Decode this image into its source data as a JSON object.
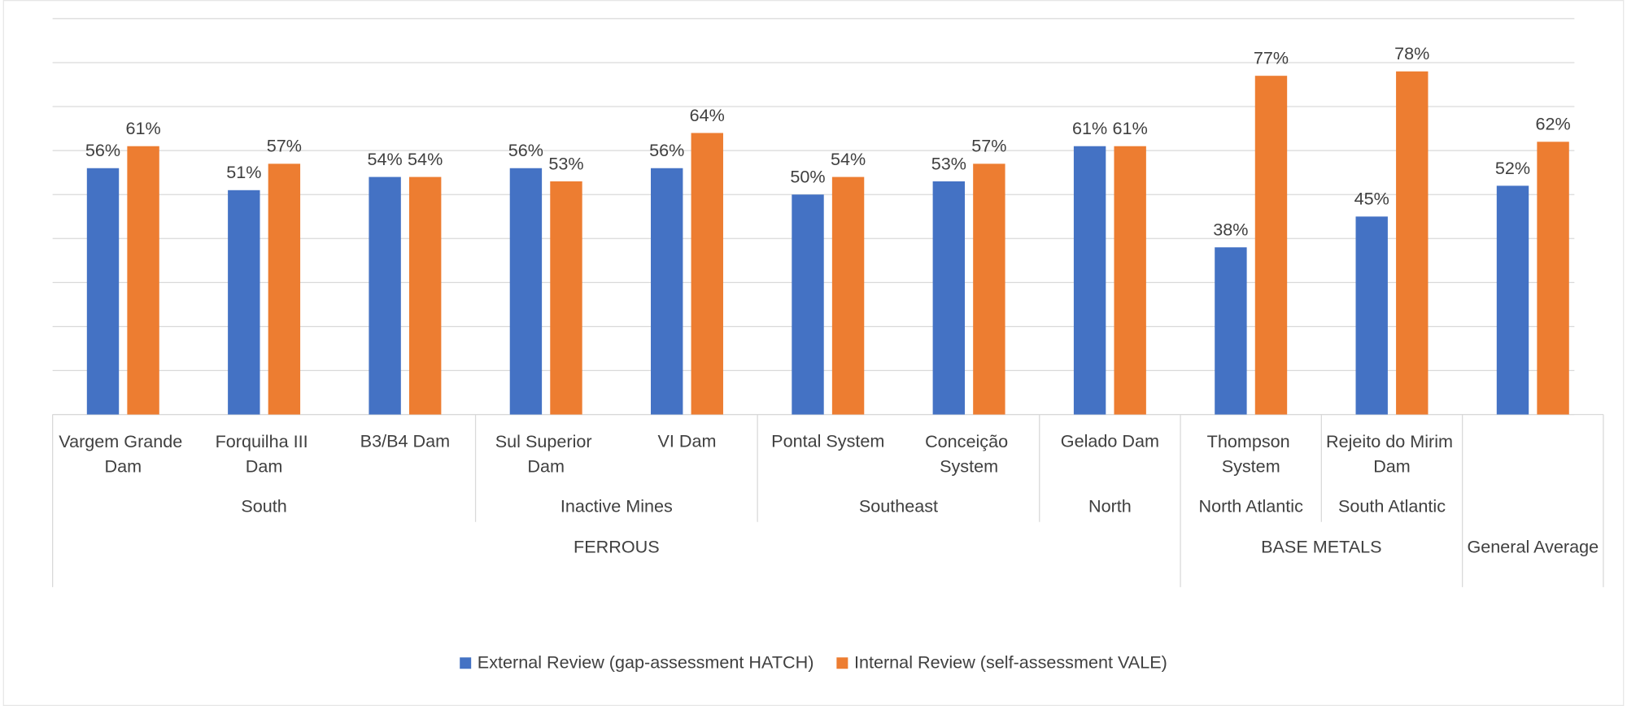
{
  "chart_data": {
    "type": "bar",
    "categories": [
      "Vargem Grande Dam",
      "Forquilha III Dam",
      "B3/B4 Dam",
      "Sul Superior Dam",
      "VI Dam",
      "Pontal System",
      "Conceição System",
      "Gelado Dam",
      "Thompson System",
      "Rejeito do Mirim Dam",
      null
    ],
    "regions": [
      "South",
      "South",
      "South",
      "Inactive Mines",
      "Inactive Mines",
      "Southeast",
      "Southeast",
      "North",
      "North Atlantic",
      "South Atlantic",
      null
    ],
    "divisions": [
      "FERROUS",
      "FERROUS",
      "FERROUS",
      "FERROUS",
      "FERROUS",
      "FERROUS",
      "FERROUS",
      "FERROUS",
      "BASE METALS",
      "BASE METALS",
      "General Average"
    ],
    "series": [
      {
        "name": "External Review (gap-assessment HATCH)",
        "color": "#4472c4",
        "values": [
          56,
          51,
          54,
          56,
          56,
          50,
          53,
          61,
          38,
          45,
          52
        ],
        "value_labels": [
          "56%",
          "51%",
          "54%",
          "56%",
          "56%",
          "50%",
          "53%",
          "61%",
          "38%",
          "45%",
          "52%"
        ]
      },
      {
        "name": "Internal Review (self-assessment VALE)",
        "color": "#ed7d31",
        "values": [
          61,
          57,
          54,
          53,
          64,
          54,
          57,
          61,
          77,
          78,
          62
        ],
        "value_labels": [
          "61%",
          "57%",
          "54%",
          "53%",
          "64%",
          "54%",
          "57%",
          "61%",
          "77%",
          "78%",
          "62%"
        ]
      }
    ],
    "ylim": [
      0,
      90
    ],
    "yticks": [
      0,
      10,
      20,
      30,
      40,
      50,
      60,
      70,
      80,
      90
    ],
    "grid": true,
    "legend": "bottom"
  }
}
